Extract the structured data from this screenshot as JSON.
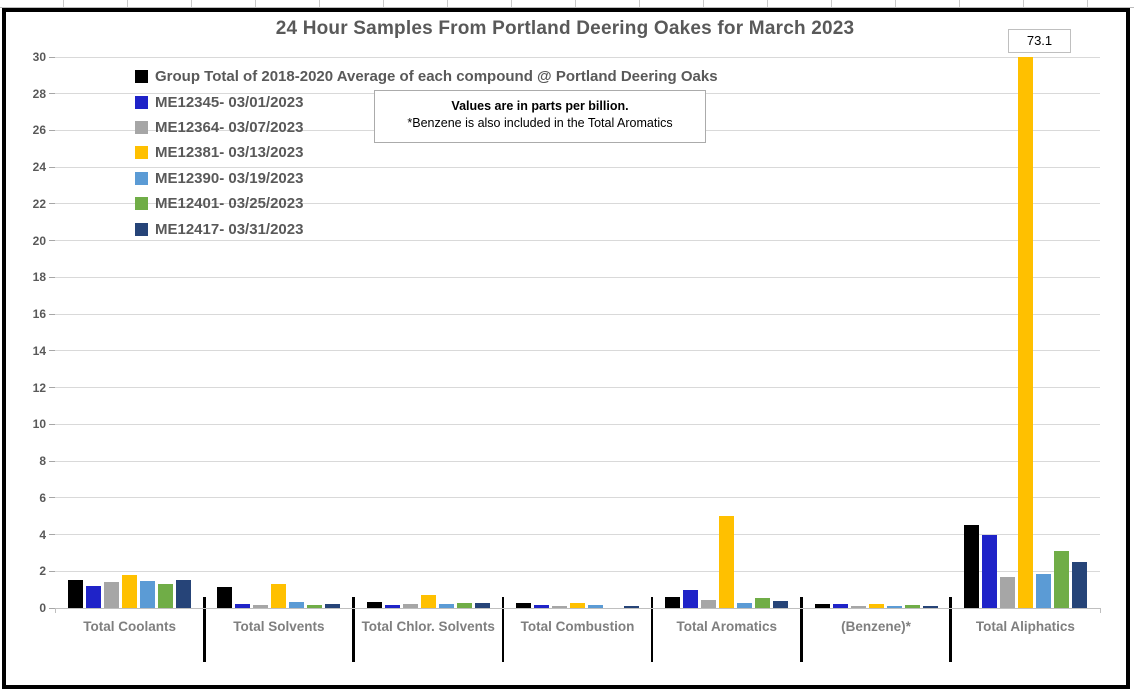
{
  "chart": {
    "title": "24 Hour Samples From Portland Deering Oakes for March 2023",
    "note_line1": "Values are in parts per billion.",
    "note_line2": "*Benzene is also included in the Total Aromatics",
    "peak_label": "73.1"
  },
  "chart_data": {
    "type": "bar",
    "title": "24 Hour Samples From Portland Deering Oakes for March 2023",
    "value_unit": "parts per billion",
    "categories": [
      "Total Coolants",
      "Total Solvents",
      "Total Chlor. Solvents",
      "Total Combustion",
      "Total Aromatics",
      "(Benzene)*",
      "Total Aliphatics"
    ],
    "series": [
      {
        "name": "Group Total of 2018-2020 Average of each compound @ Portland Deering Oaks",
        "color": "#000000",
        "values": [
          1.55,
          1.15,
          0.35,
          0.25,
          0.6,
          0.2,
          4.5
        ]
      },
      {
        "name": "ME12345- 03/01/2023",
        "color": "#1f23c8",
        "values": [
          1.2,
          0.2,
          0.15,
          0.15,
          1.0,
          0.2,
          3.95
        ]
      },
      {
        "name": "ME12364- 03/07/2023",
        "color": "#a6a6a6",
        "values": [
          1.4,
          0.15,
          0.2,
          0.1,
          0.45,
          0.1,
          1.7
        ]
      },
      {
        "name": "ME12381- 03/13/2023",
        "color": "#ffc000",
        "values": [
          1.8,
          1.3,
          0.7,
          0.25,
          5.0,
          0.2,
          73.1
        ]
      },
      {
        "name": "ME12390- 03/19/2023",
        "color": "#5b9bd5",
        "values": [
          1.45,
          0.35,
          0.2,
          0.15,
          0.3,
          0.1,
          1.85
        ]
      },
      {
        "name": "ME12401- 03/25/2023",
        "color": "#70ad47",
        "values": [
          1.3,
          0.15,
          0.25,
          0.0,
          0.55,
          0.15,
          3.1
        ]
      },
      {
        "name": "ME12417- 03/31/2023",
        "color": "#264478",
        "values": [
          1.55,
          0.2,
          0.25,
          0.1,
          0.4,
          0.1,
          2.5
        ]
      }
    ],
    "ylim": [
      0,
      30
    ],
    "yticks": [
      0,
      2,
      4,
      6,
      8,
      10,
      12,
      14,
      16,
      18,
      20,
      22,
      24,
      26,
      28,
      30
    ],
    "grid": true,
    "legend_position": "top-left-inside",
    "annotations": [
      {
        "text": "73.1",
        "series": "ME12381- 03/13/2023",
        "category": "Total Aliphatics",
        "note": "bar clipped at axis maximum"
      }
    ]
  }
}
